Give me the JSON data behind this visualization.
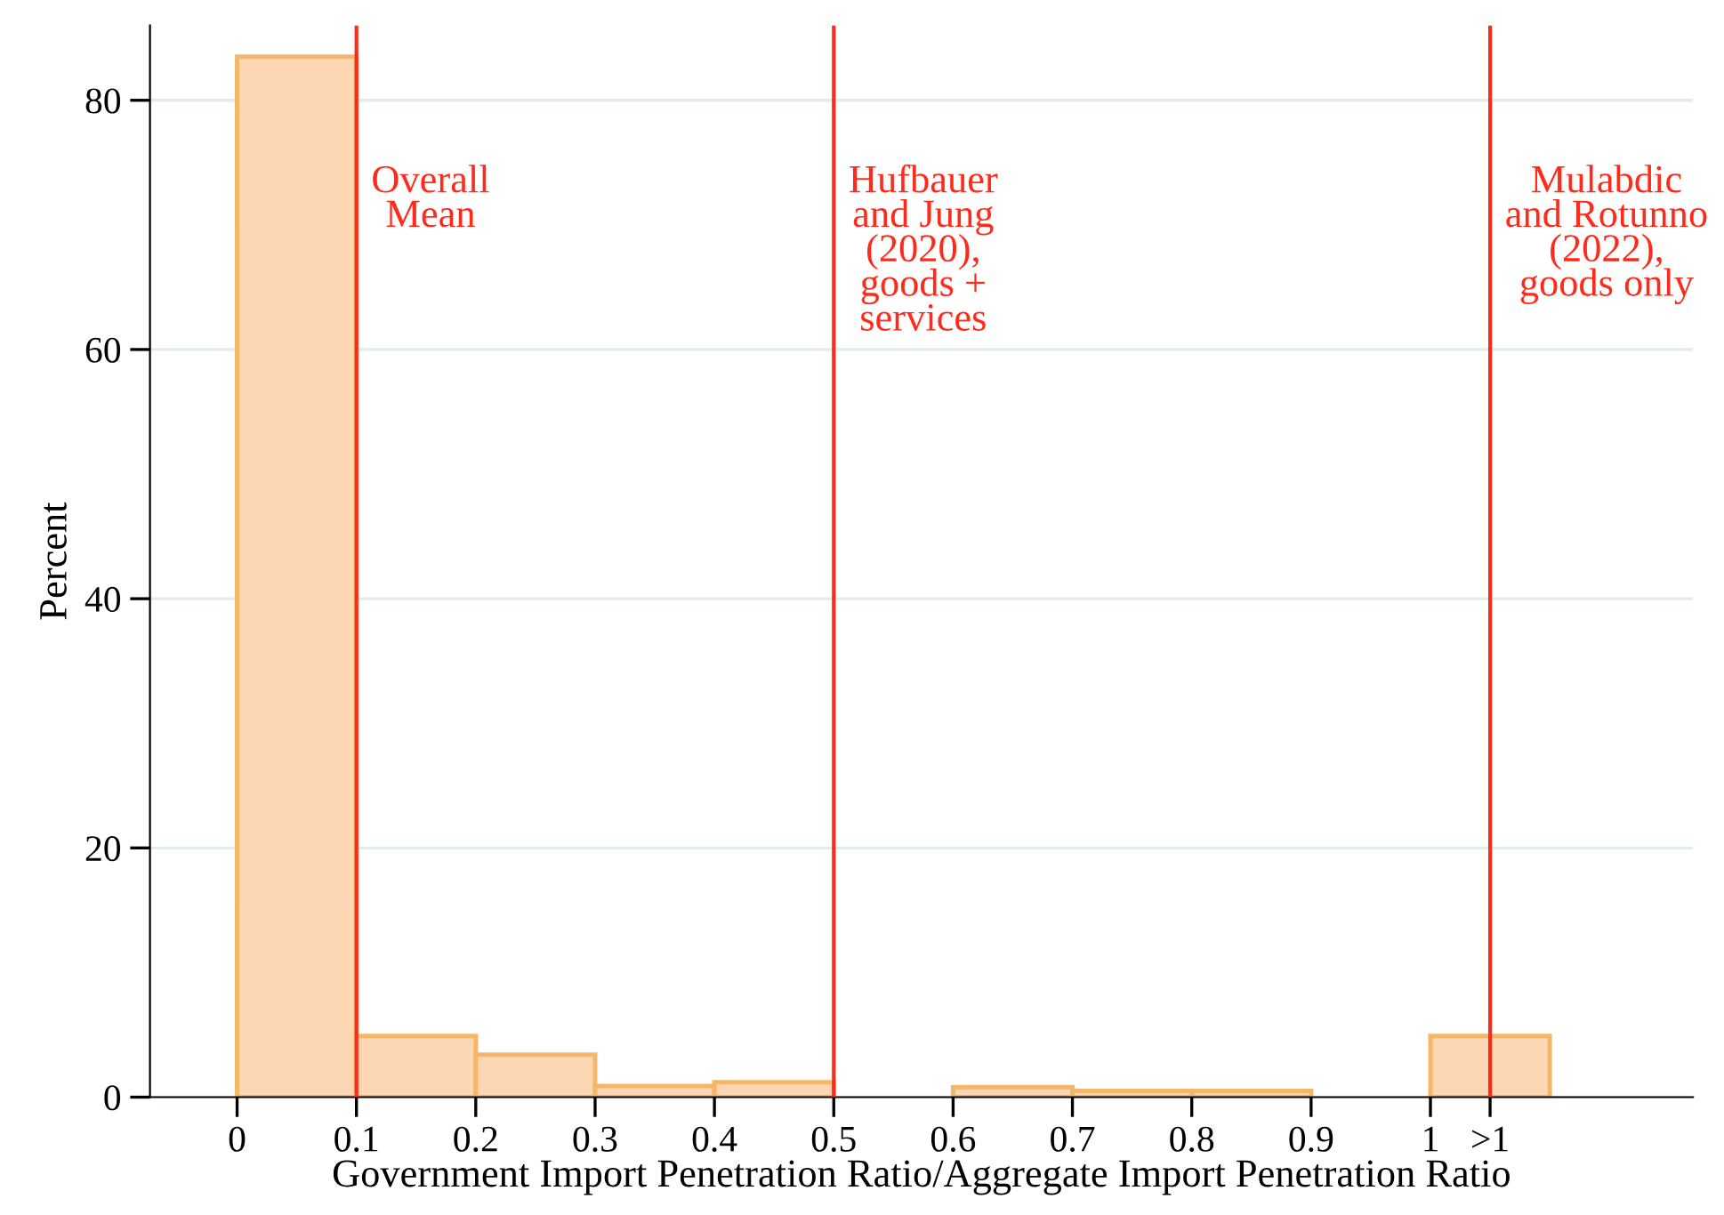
{
  "chart_data": {
    "type": "histogram",
    "xlabel": "Government Import Penetration Ratio/Aggregate Import Penetration Ratio",
    "ylabel": "Percent",
    "bins": [
      0,
      0.1,
      0.2,
      0.3,
      0.4,
      0.5,
      0.6,
      0.7,
      0.8,
      0.9,
      1.0,
      1.1
    ],
    "values": [
      83.5,
      4.9,
      3.4,
      0.9,
      1.2,
      0,
      0.8,
      0.5,
      0.5,
      0,
      4.9
    ],
    "color": "#fdd6b3",
    "xlim": [
      -0.073,
      1.22
    ],
    "ylim": [
      0,
      86
    ],
    "xticks": [
      0,
      0.1,
      0.2,
      0.3,
      0.4,
      0.5,
      0.6,
      0.7,
      0.8,
      0.9,
      1,
      {
        "value": 1.05,
        "label": ">1"
      }
    ],
    "yticks": [
      0,
      20,
      40,
      60,
      80
    ],
    "grid": "y",
    "ref_lines": [
      {
        "axis": "x",
        "value": 0.1,
        "label": "Overall\nMean",
        "color": "#ff2a1a"
      },
      {
        "axis": "x",
        "value": 0.5,
        "label": "Hufbauer\nand Jung\n(2020),\ngoods +\nservices",
        "color": "#ff2a1a"
      },
      {
        "axis": "x",
        "value": 1.05,
        "label": "Mulabdic\nand Rotunno\n(2022),\ngoods only",
        "color": "#ff2a1a"
      }
    ]
  }
}
